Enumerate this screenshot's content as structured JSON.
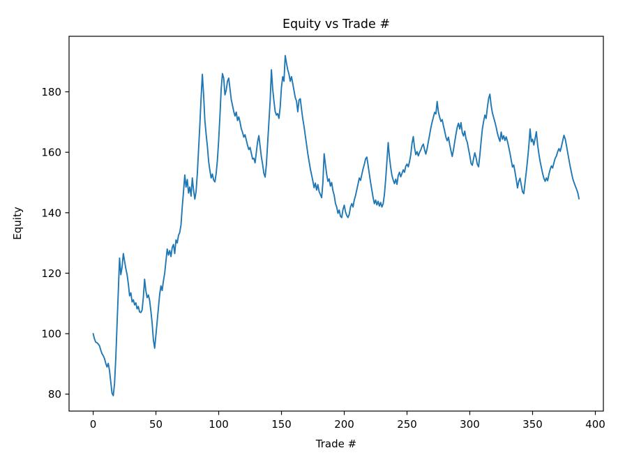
{
  "chart_data": {
    "type": "line",
    "title": "Equity vs Trade #",
    "xlabel": "Trade #",
    "ylabel": "Equity",
    "legend": null,
    "grid": false,
    "line_color": "#1f77b4",
    "spine_color": "#000000",
    "xlim": [
      -19.2,
      406.4
    ],
    "ylim": [
      74.4,
      198.36
    ],
    "x_ticks": [
      0,
      50,
      100,
      150,
      200,
      250,
      300,
      350,
      400
    ],
    "y_ticks": [
      80,
      100,
      120,
      140,
      160,
      180
    ],
    "x_start": 0,
    "x_step": 1,
    "series": [
      {
        "name": "equity",
        "values": [
          100.0,
          98.3,
          97.2,
          97.0,
          96.6,
          96.0,
          94.6,
          93.4,
          92.7,
          91.8,
          90.2,
          89.0,
          90.2,
          87.8,
          84.0,
          80.3,
          79.5,
          83.5,
          92.0,
          103.0,
          114.0,
          125.0,
          119.5,
          122.0,
          126.5,
          124.0,
          121.5,
          119.5,
          116.5,
          112.5,
          113.5,
          110.5,
          111.2,
          109.5,
          110.2,
          108.2,
          109.0,
          107.2,
          107.0,
          107.8,
          112.0,
          118.0,
          114.2,
          111.9,
          112.8,
          111.0,
          107.5,
          103.5,
          98.0,
          95.2,
          99.5,
          104.0,
          108.5,
          113.0,
          115.8,
          114.3,
          117.5,
          120.0,
          124.0,
          128.0,
          126.0,
          127.5,
          125.5,
          128.5,
          129.5,
          126.5,
          131.0,
          130.0,
          132.5,
          133.5,
          136.0,
          142.0,
          147.0,
          152.5,
          148.5,
          151.0,
          146.5,
          148.5,
          145.5,
          151.5,
          147.5,
          144.5,
          147.0,
          153.0,
          161.0,
          169.0,
          178.0,
          185.8,
          179.0,
          170.5,
          166.0,
          162.0,
          157.0,
          154.0,
          151.5,
          152.8,
          150.8,
          150.2,
          153.0,
          157.5,
          164.0,
          172.0,
          181.0,
          186.0,
          184.5,
          179.0,
          180.5,
          183.5,
          184.5,
          181.0,
          177.5,
          175.5,
          173.5,
          172.0,
          173.3,
          170.5,
          171.7,
          170.0,
          167.8,
          166.6,
          165.0,
          165.8,
          164.0,
          162.3,
          160.9,
          161.6,
          159.7,
          157.8,
          158.0,
          156.5,
          160.0,
          163.5,
          165.5,
          162.0,
          158.5,
          156.0,
          153.0,
          151.8,
          156.0,
          163.0,
          170.0,
          177.0,
          187.3,
          181.0,
          177.0,
          173.5,
          172.3,
          172.8,
          171.2,
          175.0,
          181.5,
          185.0,
          183.5,
          192.0,
          189.5,
          187.3,
          185.8,
          183.5,
          185.0,
          182.7,
          180.4,
          178.1,
          176.9,
          173.4,
          177.3,
          177.7,
          174.2,
          171.0,
          168.5,
          165.5,
          162.5,
          159.5,
          157.0,
          154.5,
          152.5,
          150.5,
          148.3,
          149.8,
          147.5,
          149.3,
          147.0,
          146.0,
          145.0,
          150.0,
          159.5,
          156.0,
          152.7,
          150.4,
          151.2,
          148.8,
          150.0,
          147.3,
          145.8,
          143.1,
          141.9,
          139.8,
          140.9,
          138.8,
          138.4,
          141.1,
          142.5,
          140.3,
          139.1,
          138.4,
          139.5,
          141.9,
          143.0,
          141.9,
          144.2,
          145.7,
          147.6,
          149.5,
          151.5,
          150.7,
          152.6,
          154.5,
          156.0,
          157.8,
          158.4,
          155.7,
          152.8,
          150.0,
          147.5,
          145.0,
          143.0,
          144.2,
          142.6,
          143.8,
          142.2,
          143.4,
          141.9,
          143.0,
          146.0,
          151.0,
          157.0,
          163.2,
          158.4,
          155.0,
          152.3,
          150.8,
          149.6,
          151.1,
          149.4,
          152.3,
          153.4,
          151.9,
          153.0,
          154.2,
          153.4,
          155.4,
          156.1,
          155.2,
          156.9,
          159.2,
          163.0,
          165.2,
          161.5,
          159.2,
          160.2,
          158.8,
          160.0,
          160.8,
          162.0,
          162.7,
          160.8,
          159.4,
          161.2,
          163.5,
          165.8,
          168.1,
          170.0,
          171.6,
          173.2,
          172.7,
          176.8,
          173.3,
          171.6,
          170.2,
          170.8,
          168.8,
          167.0,
          165.0,
          163.8,
          165.0,
          162.5,
          160.5,
          158.6,
          160.8,
          163.5,
          166.0,
          168.3,
          169.6,
          167.7,
          169.8,
          166.5,
          165.4,
          167.0,
          164.4,
          163.3,
          161.0,
          158.9,
          156.3,
          155.7,
          157.9,
          159.8,
          158.2,
          156.0,
          155.2,
          159.0,
          163.5,
          167.7,
          170.2,
          172.3,
          171.2,
          174.8,
          177.8,
          179.2,
          175.5,
          173.0,
          171.5,
          170.0,
          168.3,
          166.3,
          164.8,
          163.6,
          166.7,
          164.3,
          165.5,
          163.9,
          165.1,
          163.6,
          161.7,
          159.7,
          157.4,
          155.1,
          155.8,
          153.5,
          151.0,
          148.2,
          150.4,
          151.4,
          149.2,
          146.9,
          146.3,
          150.0,
          153.5,
          157.5,
          162.0,
          167.7,
          163.5,
          164.3,
          162.4,
          164.5,
          166.8,
          162.5,
          159.5,
          157.0,
          155.0,
          153.0,
          151.4,
          150.4,
          151.5,
          150.6,
          152.7,
          154.3,
          155.5,
          154.8,
          156.5,
          158.0,
          158.8,
          160.2,
          161.2,
          160.3,
          161.9,
          163.8,
          165.6,
          164.4,
          162.2,
          159.8,
          157.5,
          155.2,
          153.2,
          151.3,
          150.0,
          148.9,
          147.8,
          146.6,
          144.6
        ]
      }
    ]
  }
}
